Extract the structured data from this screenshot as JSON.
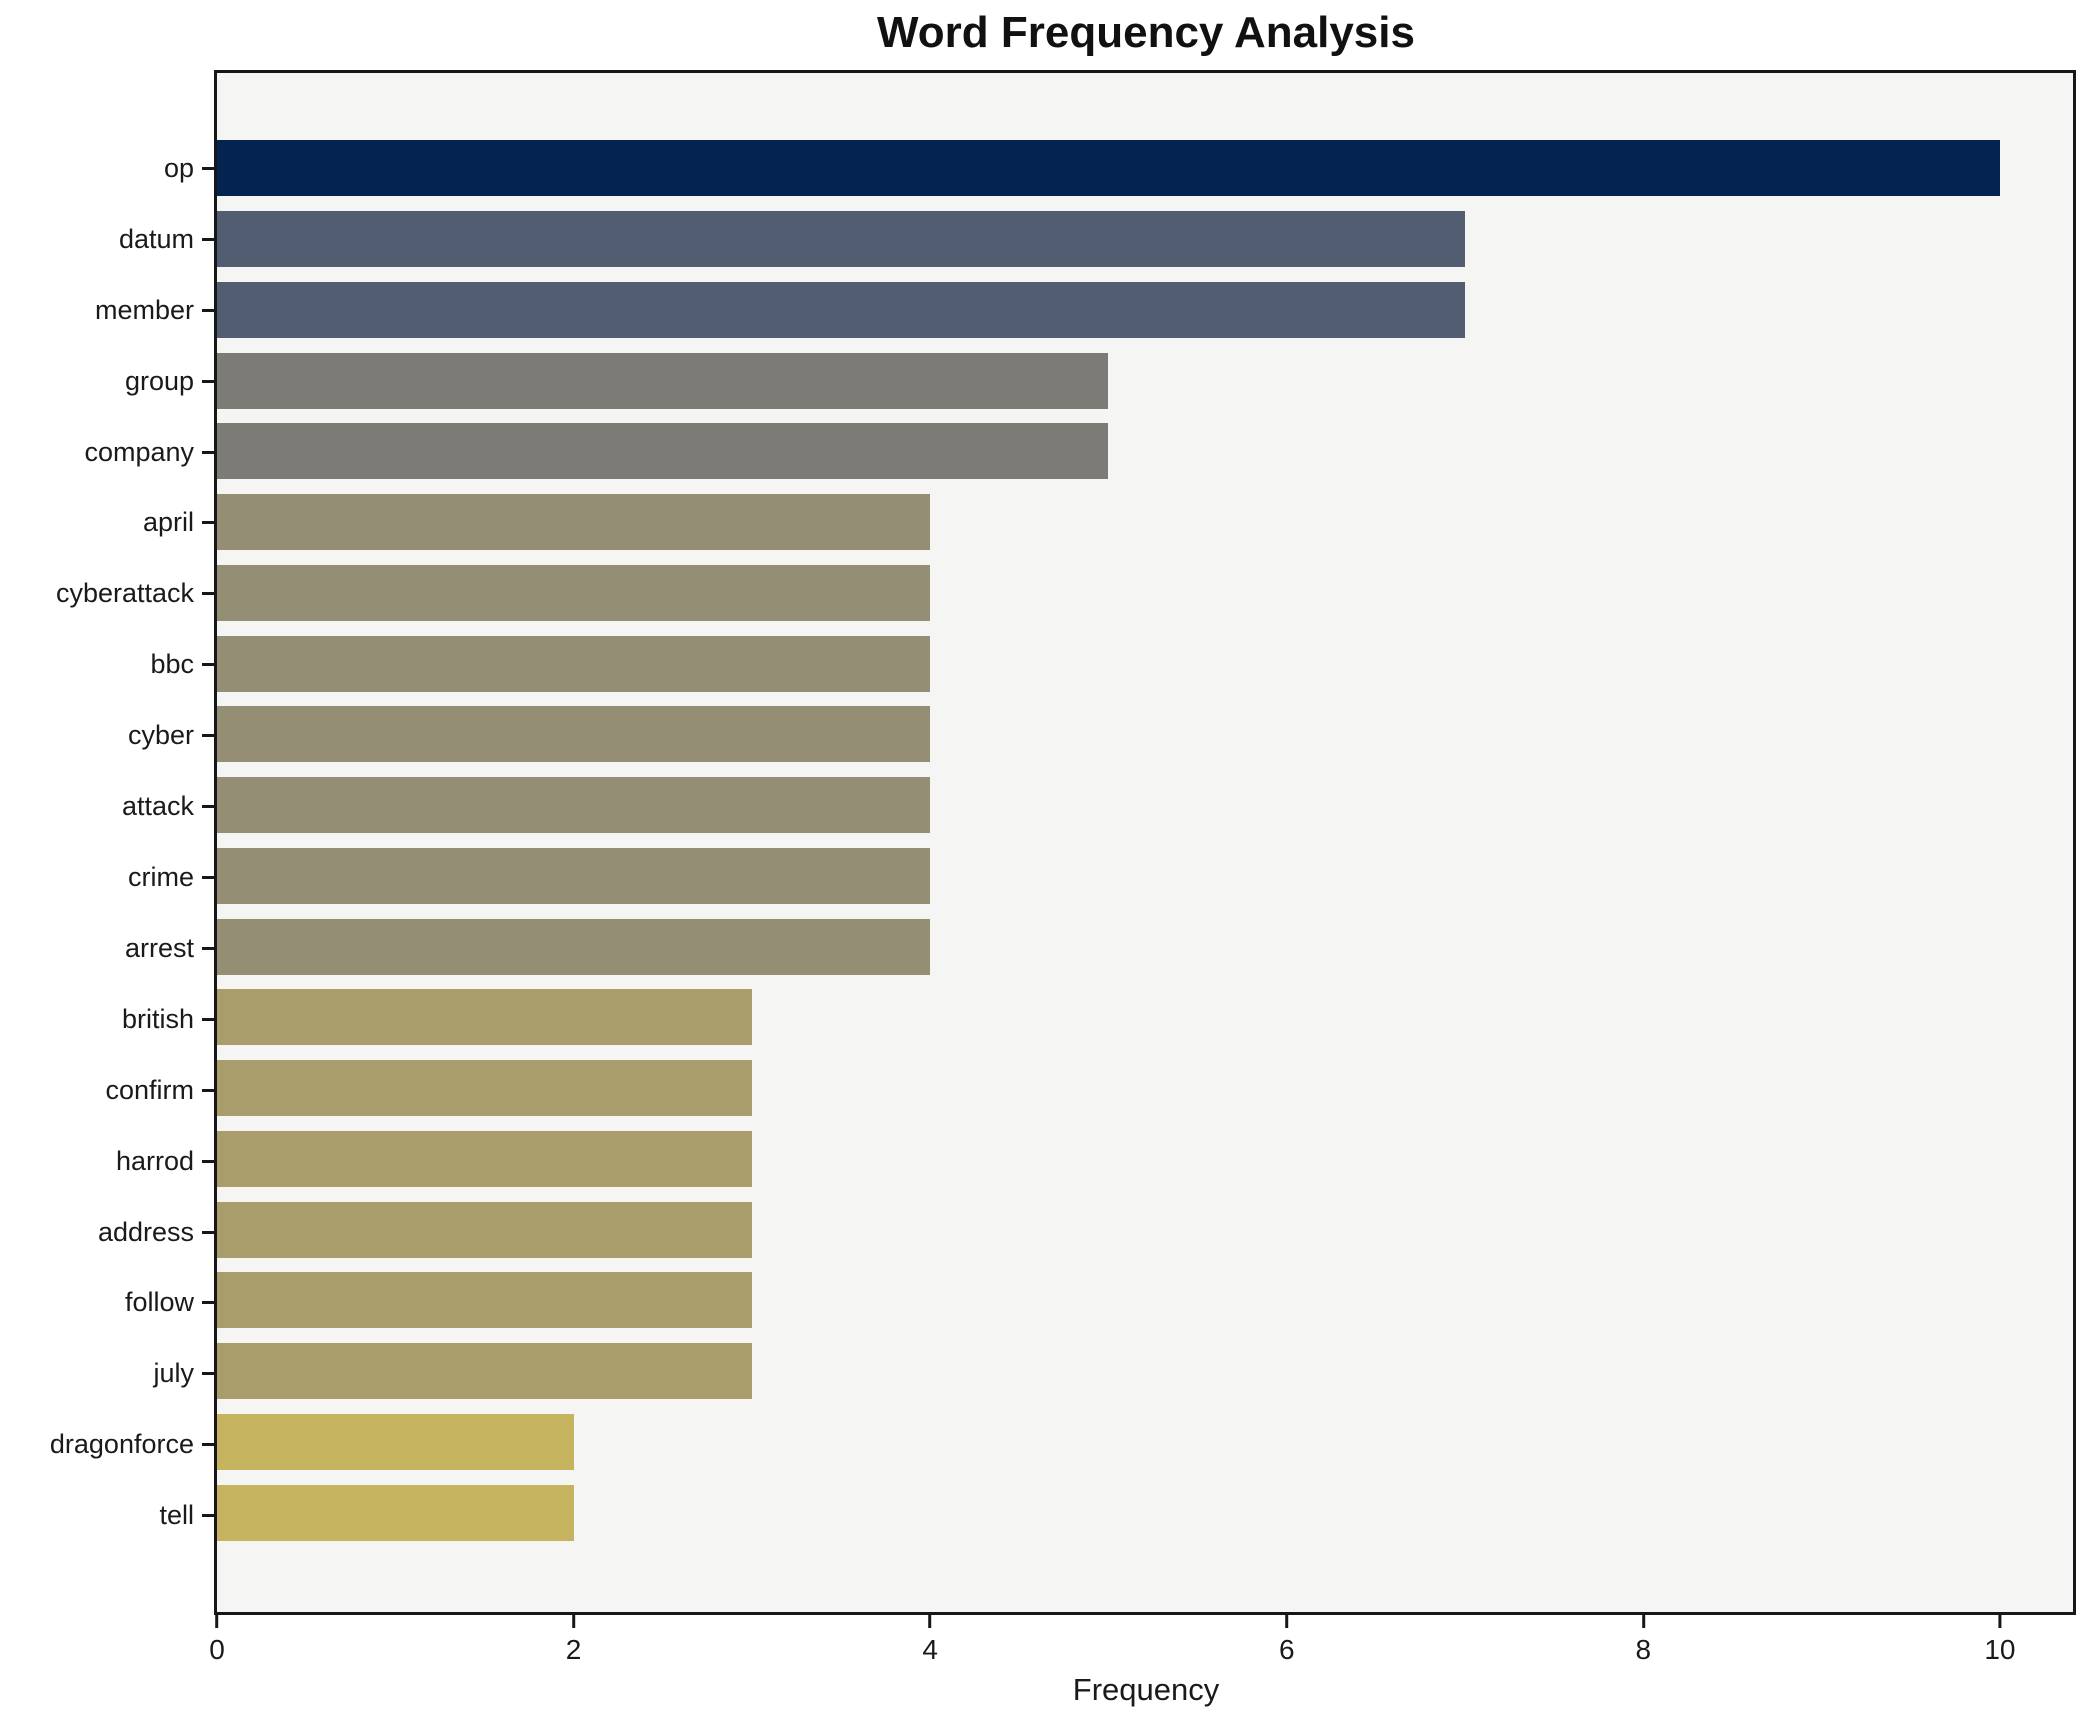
{
  "chart_data": {
    "type": "bar",
    "orientation": "horizontal",
    "title": "Word Frequency Analysis",
    "xlabel": "Frequency",
    "ylabel": "",
    "xlim": [
      0,
      10.41
    ],
    "xticks": [
      0,
      2,
      4,
      6,
      8,
      10
    ],
    "grid": false,
    "legend": false,
    "figure_background": "#ffffff",
    "plot_background": "#f5f5f4",
    "spine_color": "#17171a",
    "categories": [
      "op",
      "datum",
      "member",
      "group",
      "company",
      "april",
      "cyberattack",
      "bbc",
      "cyber",
      "attack",
      "crime",
      "arrest",
      "british",
      "confirm",
      "harrod",
      "address",
      "follow",
      "july",
      "dragonforce",
      "tell"
    ],
    "values": [
      10,
      7,
      7,
      5,
      5,
      4,
      4,
      4,
      4,
      4,
      4,
      4,
      3,
      3,
      3,
      3,
      3,
      3,
      2,
      2
    ],
    "bar_colors": [
      "#04234e",
      "#535d72",
      "#535d72",
      "#7c7b75",
      "#7c7b75",
      "#948e74",
      "#948e74",
      "#948e74",
      "#948e74",
      "#948e74",
      "#948e74",
      "#948e74",
      "#a99d6c",
      "#a99d6c",
      "#a99d6c",
      "#a99d6c",
      "#a99d6c",
      "#a99d6c",
      "#c5b35f",
      "#c5b35f"
    ]
  }
}
